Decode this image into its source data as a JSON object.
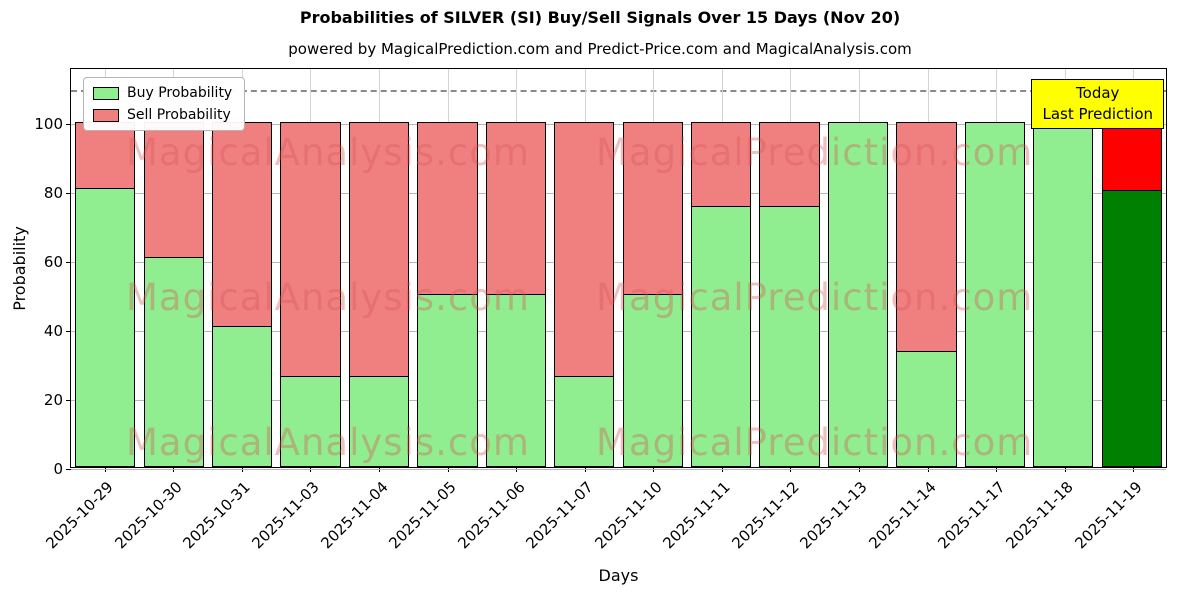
{
  "title": "Probabilities of SILVER (SI) Buy/Sell Signals Over 15 Days (Nov 20)",
  "subtitle": "powered by MagicalPrediction.com and Predict-Price.com and MagicalAnalysis.com",
  "legend": {
    "buy_label": "Buy Probability",
    "sell_label": "Sell Probability"
  },
  "annotation": {
    "line1": "Today",
    "line2": "Last Prediction"
  },
  "axes": {
    "xlabel": "Days",
    "ylabel": "Probability",
    "yticks": [
      0,
      20,
      40,
      60,
      80,
      100
    ],
    "ylim": [
      0,
      116
    ],
    "dashed_line_y": 110,
    "grid": true
  },
  "watermarks": [
    "MagicalAnalysis.com",
    "MagicalPrediction.com"
  ],
  "colors": {
    "buy": "#90EE90",
    "sell": "#F08080",
    "today_buy": "#008000",
    "today_sell": "#FF0000",
    "annotation_bg": "#FFFF00",
    "bar_edge": "#000000"
  },
  "chart_data": {
    "type": "bar",
    "stacked": true,
    "title": "Probabilities of SILVER (SI) Buy/Sell Signals Over 15 Days (Nov 20)",
    "xlabel": "Days",
    "ylabel": "Probability",
    "ylim": [
      0,
      116
    ],
    "legend_position": "upper-left",
    "categories": [
      "2025-10-29",
      "2025-10-30",
      "2025-10-31",
      "2025-11-03",
      "2025-11-04",
      "2025-11-05",
      "2025-11-06",
      "2025-11-07",
      "2025-11-10",
      "2025-11-11",
      "2025-11-12",
      "2025-11-13",
      "2025-11-14",
      "2025-11-17",
      "2025-11-18",
      "2025-11-19"
    ],
    "series": [
      {
        "name": "Buy Probability",
        "values": [
          80.5,
          60.5,
          40.5,
          26,
          26,
          50,
          50,
          26,
          50,
          75.5,
          75.5,
          100,
          33.3,
          100,
          100,
          80
        ]
      },
      {
        "name": "Sell Probability",
        "values": [
          19.5,
          39.5,
          59.5,
          74,
          74,
          50,
          50,
          74,
          50,
          24.5,
          24.5,
          0,
          66.7,
          0,
          0,
          20
        ]
      }
    ],
    "today_index": 15
  }
}
